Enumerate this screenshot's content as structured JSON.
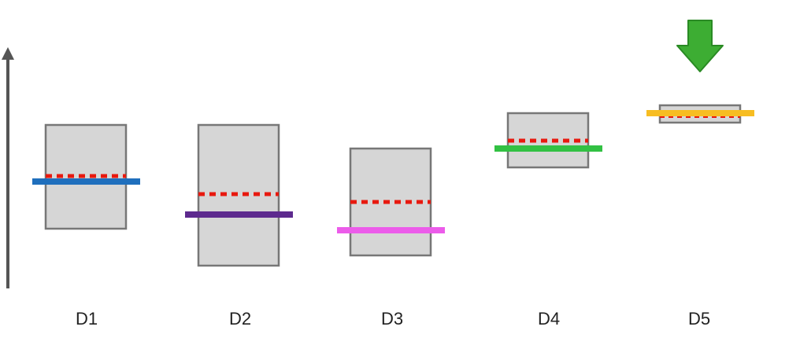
{
  "diagram": {
    "colors": {
      "box_fill": "#d6d6d6",
      "box_stroke": "#777777",
      "dashed_line": "#e8190f",
      "axis": "#555555",
      "arrow_fill": "#3dad33",
      "arrow_stroke": "#2a8a24"
    },
    "items": [
      {
        "label": "D1",
        "line_color": "#1f6fbd"
      },
      {
        "label": "D2",
        "line_color": "#5d2a8e"
      },
      {
        "label": "D3",
        "line_color": "#ec5cea"
      },
      {
        "label": "D4",
        "line_color": "#32c143"
      },
      {
        "label": "D5",
        "line_color": "#f7bd22"
      }
    ],
    "highlight_icon": "down-arrow-icon"
  }
}
